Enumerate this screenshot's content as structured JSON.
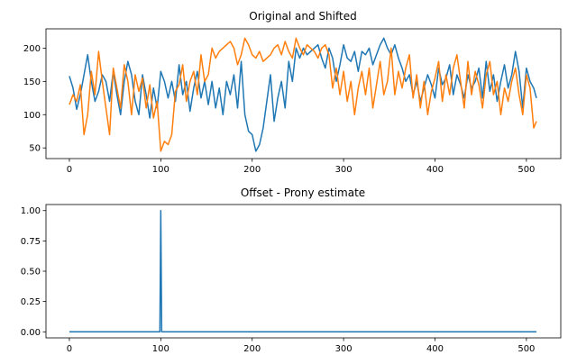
{
  "chart_data": [
    {
      "type": "line",
      "title": "Original and Shifted",
      "xlabel": "",
      "ylabel": "",
      "xlim": [
        -25.6,
        537.6
      ],
      "ylim": [
        34,
        229
      ],
      "xticks": [
        0,
        100,
        200,
        300,
        400,
        500
      ],
      "yticks": [
        50,
        100,
        150,
        200
      ],
      "grid": false,
      "series": [
        {
          "color": "#1f77b4",
          "x": [
            0,
            4,
            8,
            12,
            16,
            20,
            24,
            28,
            32,
            36,
            40,
            44,
            48,
            52,
            56,
            60,
            64,
            68,
            72,
            76,
            80,
            84,
            88,
            92,
            96,
            100,
            104,
            108,
            112,
            116,
            120,
            124,
            128,
            132,
            136,
            140,
            144,
            148,
            152,
            156,
            160,
            164,
            168,
            172,
            176,
            180,
            184,
            188,
            192,
            196,
            200,
            204,
            208,
            212,
            216,
            220,
            224,
            228,
            232,
            236,
            240,
            244,
            248,
            252,
            256,
            260,
            264,
            268,
            272,
            276,
            280,
            284,
            288,
            292,
            296,
            300,
            304,
            308,
            312,
            316,
            320,
            324,
            328,
            332,
            336,
            340,
            344,
            348,
            352,
            356,
            360,
            364,
            368,
            372,
            376,
            380,
            384,
            388,
            392,
            396,
            400,
            404,
            408,
            412,
            416,
            420,
            424,
            428,
            432,
            436,
            440,
            444,
            448,
            452,
            456,
            460,
            464,
            468,
            472,
            476,
            480,
            484,
            488,
            492,
            496,
            500,
            504,
            508,
            511
          ],
          "y": [
            158,
            140,
            108,
            130,
            160,
            190,
            150,
            120,
            135,
            160,
            150,
            120,
            165,
            130,
            100,
            150,
            180,
            160,
            120,
            100,
            160,
            130,
            95,
            140,
            110,
            165,
            150,
            125,
            150,
            120,
            175,
            130,
            150,
            105,
            140,
            165,
            125,
            150,
            115,
            150,
            110,
            140,
            100,
            150,
            130,
            160,
            110,
            180,
            100,
            75,
            70,
            45,
            55,
            80,
            120,
            160,
            90,
            125,
            150,
            110,
            180,
            150,
            200,
            185,
            200,
            190,
            195,
            200,
            205,
            185,
            170,
            200,
            185,
            150,
            175,
            205,
            185,
            180,
            195,
            165,
            195,
            190,
            200,
            175,
            190,
            205,
            215,
            200,
            190,
            205,
            185,
            170,
            150,
            160,
            130,
            150,
            120,
            140,
            160,
            145,
            125,
            170,
            145,
            155,
            175,
            130,
            160,
            145,
            125,
            160,
            140,
            150,
            170,
            125,
            180,
            135,
            160,
            120,
            150,
            175,
            140,
            160,
            195,
            165,
            110,
            170,
            150,
            140,
            125
          ]
        },
        {
          "color": "#ff7f0e",
          "x": [
            0,
            4,
            8,
            12,
            16,
            20,
            24,
            28,
            32,
            36,
            40,
            44,
            48,
            52,
            56,
            60,
            64,
            68,
            72,
            76,
            80,
            84,
            88,
            92,
            96,
            100,
            104,
            108,
            112,
            116,
            120,
            124,
            128,
            132,
            136,
            140,
            144,
            148,
            152,
            156,
            160,
            164,
            168,
            172,
            176,
            180,
            184,
            188,
            192,
            196,
            200,
            204,
            208,
            212,
            216,
            220,
            224,
            228,
            232,
            236,
            240,
            244,
            248,
            252,
            256,
            260,
            264,
            268,
            272,
            276,
            280,
            284,
            288,
            292,
            296,
            300,
            304,
            308,
            312,
            316,
            320,
            324,
            328,
            332,
            336,
            340,
            344,
            348,
            352,
            356,
            360,
            364,
            368,
            372,
            376,
            380,
            384,
            388,
            392,
            396,
            400,
            404,
            408,
            412,
            416,
            420,
            424,
            428,
            432,
            436,
            440,
            444,
            448,
            452,
            456,
            460,
            464,
            468,
            472,
            476,
            480,
            484,
            488,
            492,
            496,
            500,
            504,
            508,
            511
          ],
          "y": [
            115,
            130,
            120,
            145,
            70,
            100,
            165,
            130,
            195,
            150,
            110,
            70,
            170,
            140,
            110,
            175,
            150,
            100,
            160,
            135,
            155,
            110,
            145,
            95,
            120,
            45,
            60,
            55,
            70,
            135,
            145,
            175,
            120,
            150,
            165,
            130,
            190,
            150,
            160,
            200,
            185,
            195,
            200,
            205,
            210,
            200,
            175,
            190,
            215,
            205,
            190,
            185,
            195,
            180,
            185,
            190,
            200,
            205,
            190,
            210,
            195,
            185,
            215,
            200,
            190,
            205,
            200,
            195,
            185,
            200,
            205,
            190,
            140,
            170,
            130,
            165,
            120,
            150,
            100,
            140,
            165,
            130,
            170,
            110,
            145,
            180,
            130,
            150,
            200,
            130,
            165,
            140,
            170,
            190,
            125,
            160,
            110,
            150,
            100,
            135,
            155,
            180,
            120,
            160,
            130,
            170,
            190,
            150,
            110,
            180,
            130,
            165,
            145,
            110,
            160,
            180,
            130,
            150,
            100,
            140,
            120,
            150,
            170,
            130,
            100,
            160,
            140,
            80,
            90
          ]
        }
      ]
    },
    {
      "type": "line",
      "title": "Offset - Prony estimate",
      "xlabel": "",
      "ylabel": "",
      "xlim": [
        -25.6,
        537.6
      ],
      "ylim": [
        -0.05,
        1.05
      ],
      "xticks": [
        0,
        100,
        200,
        300,
        400,
        500
      ],
      "yticks": [
        0.0,
        0.25,
        0.5,
        0.75,
        1.0
      ],
      "ytick_labels": [
        "0.00",
        "0.25",
        "0.50",
        "0.75",
        "1.00"
      ],
      "grid": false,
      "series": [
        {
          "color": "#1f77b4",
          "x": [
            0,
            99,
            100,
            101,
            511
          ],
          "y": [
            0,
            0,
            1,
            0,
            0
          ]
        }
      ]
    }
  ]
}
